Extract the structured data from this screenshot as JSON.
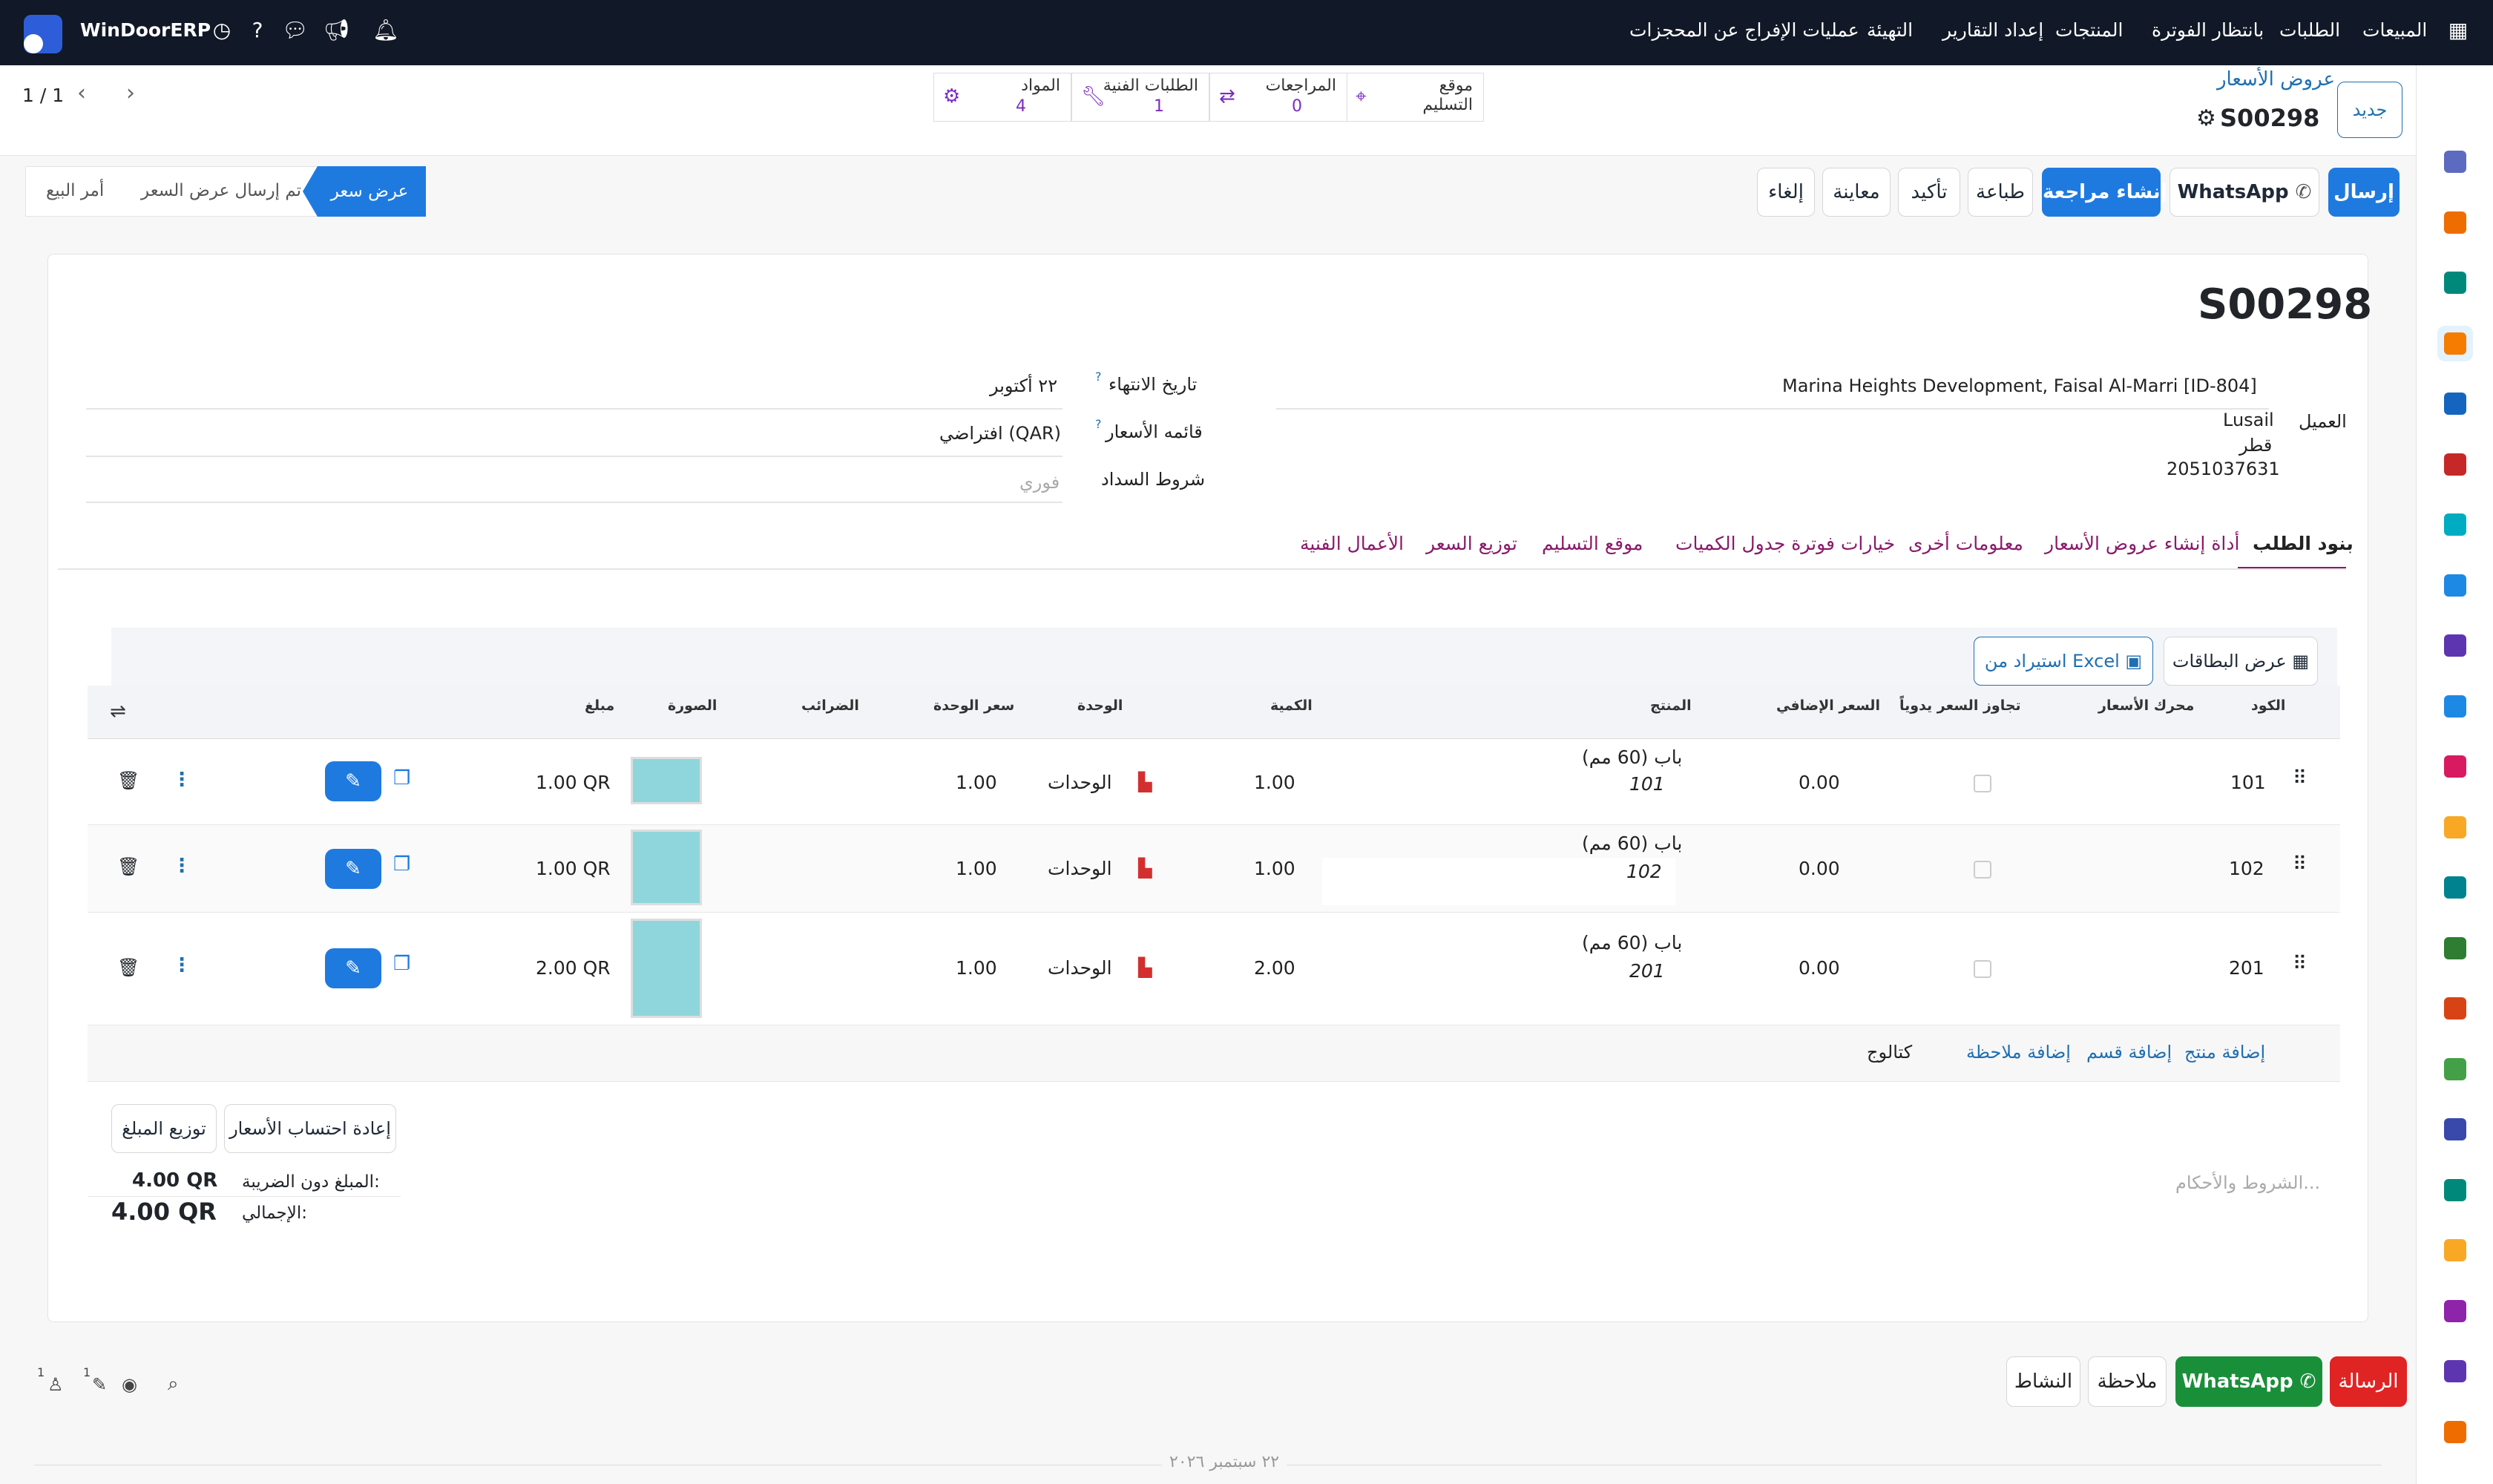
{
  "topnav": {
    "brand": "WinDoorERP",
    "menu": [
      "المبيعات",
      "الطلبات",
      "بانتظار الفوترة",
      "المنتجات",
      "إعداد التقارير",
      "التهيئة",
      "عمليات الإفراج عن المحجزات"
    ],
    "icons": [
      "apps-grid-icon",
      "bell-icon",
      "megaphone-icon",
      "chat-icon",
      "help-icon",
      "clock-icon"
    ]
  },
  "sidebar": {
    "apps": [
      "gmail-icon",
      "discuss-icon",
      "approvals-icon",
      "dashboard-icon",
      "documents-icon",
      "photos-icon",
      "project-icon",
      "knowledge-icon",
      "inventory-icon",
      "sign-icon",
      "contacts-icon",
      "calendar-icon",
      "draw-icon",
      "employees-icon",
      "apps-icon",
      "whatsapp-icon",
      "timer-icon",
      "wave-icon",
      "telegram-icon",
      "spreadsheet-icon",
      "box-icon",
      "sun-icon"
    ]
  },
  "breadcrumb": {
    "parent": "عروض الأسعار",
    "current": "S00298",
    "new_label": "جديد"
  },
  "pager": {
    "value": "1 / 1"
  },
  "stat_buttons": [
    {
      "label": "موقع التسليم",
      "line2": "",
      "value": "",
      "icon": "map-pin-icon"
    },
    {
      "label": "المراجعات",
      "value": "0",
      "icon": "revisions-icon"
    },
    {
      "label": "الطلبات الفنية",
      "value": "1",
      "icon": "wrench-icon"
    },
    {
      "label": "المواد",
      "value": "4",
      "icon": "bicycle-icon"
    }
  ],
  "actions": {
    "send": "إرسال",
    "whatsapp": "WhatsApp",
    "create_revision": "إنشاء مراجعة",
    "print": "طباعة",
    "confirm": "تأكيد",
    "preview": "معاينة",
    "cancel": "إلغاء"
  },
  "statusbar": [
    "عرض سعر",
    "تم إرسال عرض السعر",
    "أمر البيع"
  ],
  "form": {
    "title": "S00298",
    "customer_label": "العميل",
    "customer_name": "Marina Heights Development, Faisal Al-Marri [ID-804]",
    "customer_city": "Lusail",
    "customer_country": "قطر",
    "customer_phone": "2051037631",
    "expiry_label": "تاريخ الانتهاء",
    "expiry_value": "٢٢ أكتوبر",
    "pricelist_label": "قائمه الأسعار",
    "pricelist_value": "افتراضي (QAR)",
    "terms_label": "شروط السداد",
    "terms_placeholder": "فوري",
    "help_mark": "?"
  },
  "tabs": [
    "بنود الطلب",
    "أداة إنشاء عروض الأسعار",
    "معلومات أخرى",
    "خيارات فوترة جدول الكميات",
    "موقع التسليم",
    "توزيع السعر",
    "الأعمال الفنية"
  ],
  "lines_toolbar": {
    "card_view": "عرض البطاقات",
    "excel_import": "استيراد من Excel"
  },
  "table": {
    "headers": [
      "الكود",
      "محرك الأسعار",
      "تجاوز السعر يدوياً",
      "السعر الإضافي",
      "المنتج",
      "الكمية",
      "الوحدة",
      "سعر الوحدة",
      "الضرائب",
      "الصورة",
      "مبلغ"
    ],
    "rows": [
      {
        "code": "101",
        "extra": "0.00",
        "product": "باب (60 مم)",
        "product_code": "101",
        "qty": "1.00",
        "uom": "الوحدات",
        "unit_price": "1.00",
        "amount": "1.00 QR"
      },
      {
        "code": "102",
        "extra": "0.00",
        "product": "باب (60 مم)",
        "product_code": "102",
        "qty": "1.00",
        "uom": "الوحدات",
        "unit_price": "1.00",
        "amount": "1.00 QR"
      },
      {
        "code": "201",
        "extra": "0.00",
        "product": "باب (60 مم)",
        "product_code": "201",
        "qty": "2.00",
        "uom": "الوحدات",
        "unit_price": "1.00",
        "amount": "2.00 QR"
      }
    ],
    "add_links": [
      "إضافة منتج",
      "إضافة قسم",
      "إضافة ملاحظة",
      "كتالوج"
    ]
  },
  "totals": {
    "recompute": "إعادة احتساب الأسعار",
    "distribute": "توزيع المبلغ",
    "untaxed_label": "المبلغ دون الضريبة:",
    "untaxed_value": "4.00 QR",
    "total_label": "الإجمالي:",
    "total_value": "4.00 QR",
    "terms_placeholder": "الشروط والأحكام..."
  },
  "chatter": {
    "message": "الرسالة",
    "whatsapp": "WhatsApp",
    "note": "ملاحظة",
    "activity": "النشاط",
    "followers_count": "1",
    "attachments_count": "1",
    "date_divider": "٢٢ سبتمبر ٢٠٢٦"
  },
  "colors": {
    "topnav": "#111827",
    "primary": "#1f7ae0",
    "purple": "#7b2cbf",
    "red": "#e02424",
    "green": "#1a8f3a"
  }
}
